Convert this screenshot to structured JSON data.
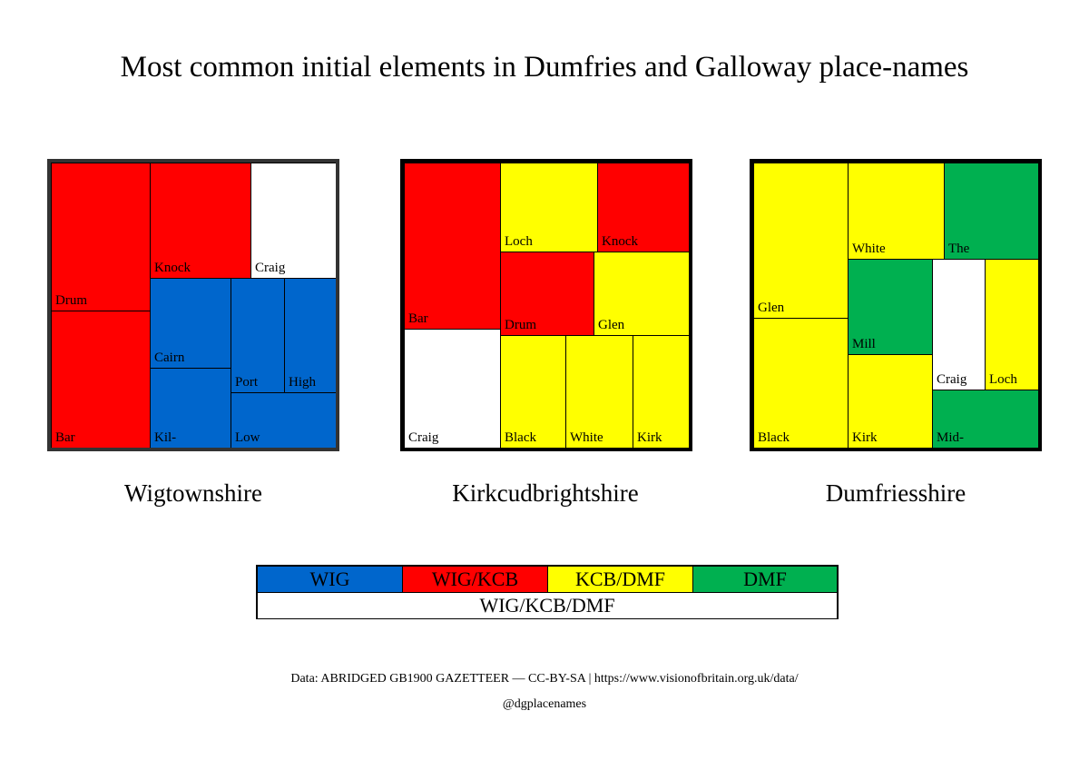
{
  "title": "Most common initial elements in Dumfries and Galloway place-names",
  "colors": {
    "WIG": "#0066CC",
    "WIG/KCB": "#FF0000",
    "KCB/DMF": "#FFFF00",
    "DMF": "#00B050",
    "WIG/KCB/DMF": "#FFFFFF"
  },
  "chart_data": [
    {
      "type": "treemap",
      "title": "Wigtownshire",
      "cells": [
        {
          "label": "Drum",
          "group": "WIG/KCB",
          "x0": 0,
          "y0": 0,
          "x1": 34.6,
          "y1": 52
        },
        {
          "label": "Bar",
          "group": "WIG/KCB",
          "x0": 0,
          "y0": 52,
          "x1": 34.6,
          "y1": 100
        },
        {
          "label": "Knock",
          "group": "WIG/KCB",
          "x0": 34.6,
          "y0": 0,
          "x1": 70.2,
          "y1": 40.5
        },
        {
          "label": "Craig",
          "group": "WIG/KCB/DMF",
          "x0": 70.2,
          "y0": 0,
          "x1": 100,
          "y1": 40.5
        },
        {
          "label": "Cairn",
          "group": "WIG",
          "x0": 34.6,
          "y0": 40.5,
          "x1": 62.9,
          "y1": 71.9
        },
        {
          "label": "Kil-",
          "group": "WIG",
          "x0": 34.6,
          "y0": 71.9,
          "x1": 62.9,
          "y1": 100
        },
        {
          "label": "Port",
          "group": "WIG",
          "x0": 62.9,
          "y0": 40.5,
          "x1": 81.7,
          "y1": 80.5
        },
        {
          "label": "High",
          "group": "WIG",
          "x0": 81.7,
          "y0": 40.5,
          "x1": 100,
          "y1": 80.5
        },
        {
          "label": "Low",
          "group": "WIG",
          "x0": 62.9,
          "y0": 80.5,
          "x1": 100,
          "y1": 100
        }
      ]
    },
    {
      "type": "treemap",
      "title": "Kirkcudbrightshire",
      "cells": [
        {
          "label": "Bar",
          "group": "WIG/KCB",
          "x0": 0,
          "y0": 0,
          "x1": 33.7,
          "y1": 58.3
        },
        {
          "label": "Craig",
          "group": "WIG/KCB/DMF",
          "x0": 0,
          "y0": 58.3,
          "x1": 33.7,
          "y1": 100
        },
        {
          "label": "Loch",
          "group": "KCB/DMF",
          "x0": 33.7,
          "y0": 0,
          "x1": 67.7,
          "y1": 31.2
        },
        {
          "label": "Knock",
          "group": "WIG/KCB",
          "x0": 67.7,
          "y0": 0,
          "x1": 100,
          "y1": 31.2
        },
        {
          "label": "Drum",
          "group": "WIG/KCB",
          "x0": 33.7,
          "y0": 31.2,
          "x1": 66.7,
          "y1": 60.5
        },
        {
          "label": "Glen",
          "group": "KCB/DMF",
          "x0": 66.7,
          "y0": 31.2,
          "x1": 100,
          "y1": 60.5
        },
        {
          "label": "Black",
          "group": "KCB/DMF",
          "x0": 33.7,
          "y0": 60.5,
          "x1": 56.7,
          "y1": 100
        },
        {
          "label": "White",
          "group": "KCB/DMF",
          "x0": 56.7,
          "y0": 60.5,
          "x1": 80.3,
          "y1": 100
        },
        {
          "label": "Kirk",
          "group": "KCB/DMF",
          "x0": 80.3,
          "y0": 60.5,
          "x1": 100,
          "y1": 100
        }
      ]
    },
    {
      "type": "treemap",
      "title": "Dumfriesshire",
      "cells": [
        {
          "label": "Glen",
          "group": "KCB/DMF",
          "x0": 0,
          "y0": 0,
          "x1": 33.1,
          "y1": 54.5
        },
        {
          "label": "Black",
          "group": "KCB/DMF",
          "x0": 0,
          "y0": 54.5,
          "x1": 33.1,
          "y1": 100
        },
        {
          "label": "White",
          "group": "KCB/DMF",
          "x0": 33.1,
          "y0": 0,
          "x1": 66.9,
          "y1": 33.8
        },
        {
          "label": "The",
          "group": "DMF",
          "x0": 66.9,
          "y0": 0,
          "x1": 100,
          "y1": 33.8
        },
        {
          "label": "Mill",
          "group": "DMF",
          "x0": 33.1,
          "y0": 33.8,
          "x1": 62.7,
          "y1": 67.2
        },
        {
          "label": "Kirk",
          "group": "KCB/DMF",
          "x0": 33.1,
          "y0": 67.2,
          "x1": 62.7,
          "y1": 100
        },
        {
          "label": "Craig",
          "group": "WIG/KCB/DMF",
          "x0": 62.7,
          "y0": 33.8,
          "x1": 81.2,
          "y1": 79.6
        },
        {
          "label": "Loch",
          "group": "KCB/DMF",
          "x0": 81.2,
          "y0": 33.8,
          "x1": 100,
          "y1": 79.6
        },
        {
          "label": "Mid-",
          "group": "DMF",
          "x0": 62.7,
          "y0": 79.6,
          "x1": 100,
          "y1": 100
        }
      ]
    }
  ],
  "legend": {
    "top": [
      "WIG",
      "WIG/KCB",
      "KCB/DMF",
      "DMF"
    ],
    "bottom": "WIG/KCB/DMF"
  },
  "source": "Data: ABRIDGED GB1900 GAZETTEER — CC-BY-SA | https://www.visionofbritain.org.uk/data/",
  "handle": "@dgplacenames"
}
